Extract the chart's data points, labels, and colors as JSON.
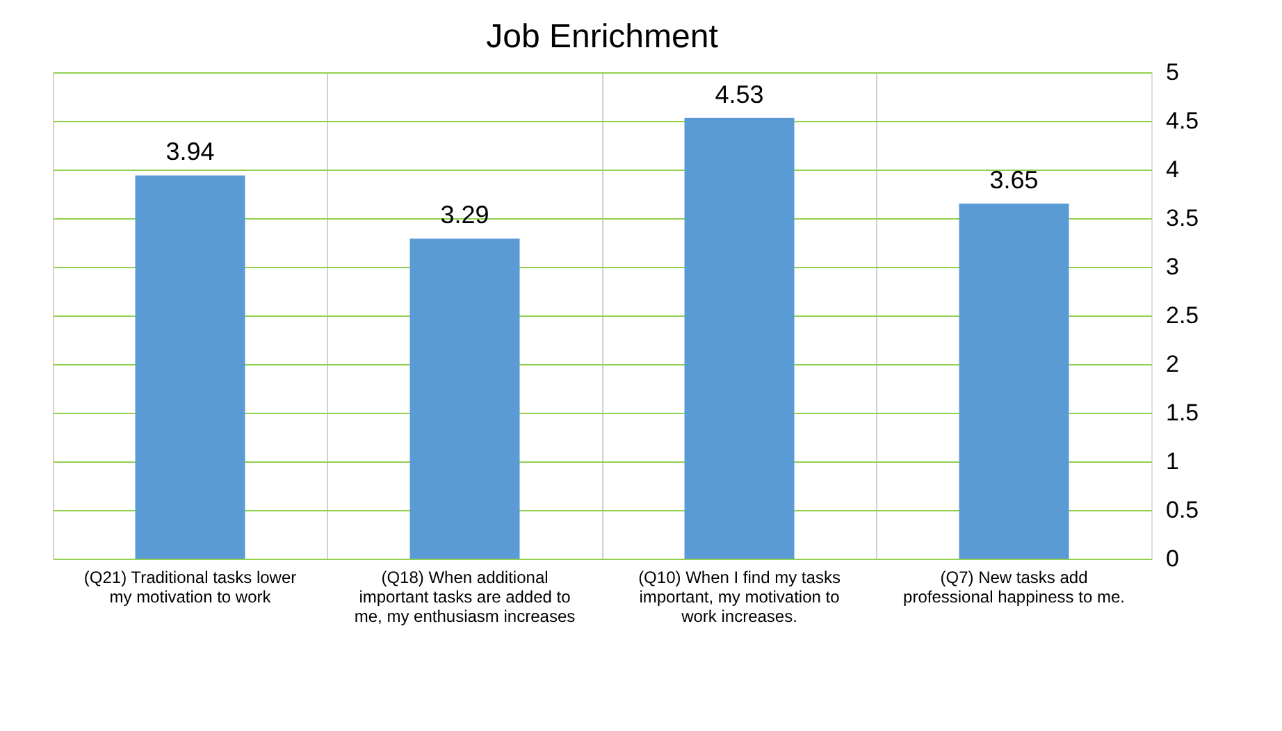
{
  "chart_data": {
    "type": "bar",
    "title": "Job Enrichment",
    "categories": [
      "(Q21) Traditional tasks lower my motivation to work",
      "(Q18) When additional important tasks are added to me, my enthusiasm increases",
      "(Q10) When I find my tasks important, my motivation to work increases.",
      "(Q7) New tasks add professional happiness to me."
    ],
    "values": [
      3.94,
      3.29,
      4.53,
      3.65
    ],
    "color": "#5b9bd5",
    "ylim": [
      0,
      5
    ],
    "yticks": [
      0,
      0.5,
      1,
      1.5,
      2,
      2.5,
      3,
      3.5,
      4,
      4.5,
      5
    ],
    "grid": true,
    "data_labels": true
  }
}
